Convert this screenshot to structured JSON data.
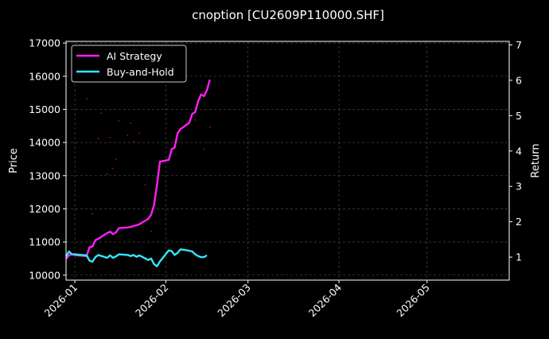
{
  "chart_data": {
    "type": "line",
    "title": "cnoption [CU2609P110000.SHF]",
    "xlabel": "",
    "ylabel": "Price",
    "y2label": "Return",
    "x_range": [
      "2025-12-29",
      "2026-05-29"
    ],
    "ylim": [
      9850,
      17050
    ],
    "y2lim": [
      0.35,
      7.1
    ],
    "y_ticks": [
      10000,
      11000,
      12000,
      13000,
      14000,
      15000,
      16000,
      17000
    ],
    "y2_ticks": [
      1,
      2,
      3,
      4,
      5,
      6,
      7
    ],
    "x_ticks": [
      "2026-01",
      "2026-02",
      "2026-03",
      "2026-04",
      "2026-05"
    ],
    "x_tick_dates": [
      "2026-01-01",
      "2026-02-01",
      "2026-03-01",
      "2026-04-01",
      "2026-05-01"
    ],
    "grid": true,
    "legend_placement": "top-left",
    "background": "#000000",
    "colors": {
      "ai": "#ff1ff5",
      "bh": "#33e6ff",
      "price": "#cc0033",
      "grid": "#555555"
    },
    "series": [
      {
        "name": "AI Strategy",
        "axis": "right",
        "points": [
          [
            "2025-12-29",
            0.95
          ],
          [
            "2025-12-30",
            1.05
          ],
          [
            "2025-12-31",
            1.08
          ],
          [
            "2026-01-01",
            1.06
          ],
          [
            "2026-01-02",
            1.05
          ],
          [
            "2026-01-05",
            1.03
          ],
          [
            "2026-01-06",
            1.28
          ],
          [
            "2026-01-07",
            1.3
          ],
          [
            "2026-01-08",
            1.48
          ],
          [
            "2026-01-09",
            1.52
          ],
          [
            "2026-01-12",
            1.68
          ],
          [
            "2026-01-13",
            1.72
          ],
          [
            "2026-01-14",
            1.65
          ],
          [
            "2026-01-15",
            1.7
          ],
          [
            "2026-01-16",
            1.82
          ],
          [
            "2026-01-19",
            1.84
          ],
          [
            "2026-01-20",
            1.85
          ],
          [
            "2026-01-21",
            1.88
          ],
          [
            "2026-01-22",
            1.9
          ],
          [
            "2026-01-23",
            1.93
          ],
          [
            "2026-01-26",
            2.08
          ],
          [
            "2026-01-27",
            2.2
          ],
          [
            "2026-01-28",
            2.48
          ],
          [
            "2026-01-29",
            3.05
          ],
          [
            "2026-01-30",
            3.7
          ],
          [
            "2026-02-02",
            3.75
          ],
          [
            "2026-02-03",
            4.05
          ],
          [
            "2026-02-04",
            4.1
          ],
          [
            "2026-02-05",
            4.5
          ],
          [
            "2026-02-06",
            4.62
          ],
          [
            "2026-02-09",
            4.8
          ],
          [
            "2026-02-10",
            5.05
          ],
          [
            "2026-02-11",
            5.1
          ],
          [
            "2026-02-12",
            5.4
          ],
          [
            "2026-02-13",
            5.6
          ],
          [
            "2026-02-14",
            5.55
          ],
          [
            "2026-02-15",
            5.72
          ],
          [
            "2026-02-16",
            6.02
          ]
        ]
      },
      {
        "name": "Buy-and-Hold",
        "axis": "right",
        "points": [
          [
            "2025-12-29",
            1.02
          ],
          [
            "2025-12-30",
            1.16
          ],
          [
            "2025-12-31",
            1.08
          ],
          [
            "2026-01-01",
            1.08
          ],
          [
            "2026-01-02",
            1.07
          ],
          [
            "2026-01-05",
            1.05
          ],
          [
            "2026-01-06",
            0.9
          ],
          [
            "2026-01-07",
            0.87
          ],
          [
            "2026-01-08",
            1.0
          ],
          [
            "2026-01-09",
            1.06
          ],
          [
            "2026-01-12",
            0.98
          ],
          [
            "2026-01-13",
            1.05
          ],
          [
            "2026-01-14",
            0.98
          ],
          [
            "2026-01-15",
            1.02
          ],
          [
            "2026-01-16",
            1.08
          ],
          [
            "2026-01-19",
            1.06
          ],
          [
            "2026-01-20",
            1.03
          ],
          [
            "2026-01-21",
            1.06
          ],
          [
            "2026-01-22",
            1.01
          ],
          [
            "2026-01-23",
            1.05
          ],
          [
            "2026-01-26",
            0.92
          ],
          [
            "2026-01-27",
            0.96
          ],
          [
            "2026-01-28",
            0.8
          ],
          [
            "2026-01-29",
            0.74
          ],
          [
            "2026-01-30",
            0.88
          ],
          [
            "2026-02-02",
            1.19
          ],
          [
            "2026-02-03",
            1.17
          ],
          [
            "2026-02-04",
            1.06
          ],
          [
            "2026-02-05",
            1.12
          ],
          [
            "2026-02-06",
            1.22
          ],
          [
            "2026-02-09",
            1.18
          ],
          [
            "2026-02-10",
            1.16
          ],
          [
            "2026-02-11",
            1.08
          ],
          [
            "2026-02-12",
            1.03
          ],
          [
            "2026-02-13",
            1.0
          ],
          [
            "2026-02-14",
            1.0
          ],
          [
            "2026-02-15",
            1.05
          ]
        ]
      }
    ],
    "price_points": {
      "axis": "left",
      "points": [
        [
          "2026-01-05",
          15320
        ],
        [
          "2026-01-07",
          11850
        ],
        [
          "2026-01-09",
          14120
        ],
        [
          "2026-01-10",
          14880
        ],
        [
          "2026-01-12",
          13050
        ],
        [
          "2026-01-13",
          14150
        ],
        [
          "2026-01-14",
          13220
        ],
        [
          "2026-01-15",
          13500
        ],
        [
          "2026-01-16",
          14650
        ],
        [
          "2026-01-19",
          14220
        ],
        [
          "2026-01-20",
          14580
        ],
        [
          "2026-01-21",
          14020
        ],
        [
          "2026-01-23",
          14280
        ],
        [
          "2026-01-25",
          12720
        ],
        [
          "2026-01-27",
          11320
        ],
        [
          "2026-02-11",
          14680
        ],
        [
          "2026-02-14",
          13800
        ],
        [
          "2026-02-16",
          14460
        ]
      ]
    }
  }
}
